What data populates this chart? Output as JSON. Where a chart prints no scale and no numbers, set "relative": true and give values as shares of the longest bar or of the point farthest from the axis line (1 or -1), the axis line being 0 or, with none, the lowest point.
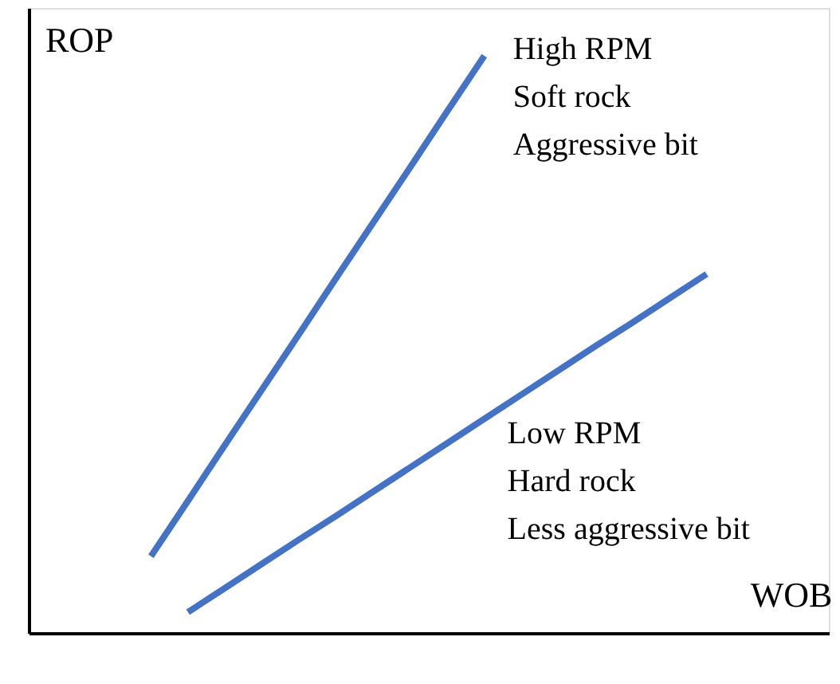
{
  "chart_data": {
    "type": "line",
    "relative": true,
    "xlabel": "WOB",
    "ylabel": "ROP",
    "grid": false,
    "marker": "none",
    "line_style": "solid",
    "categories": [
      null,
      null,
      null,
      null,
      null,
      null,
      null,
      null,
      null,
      null,
      null,
      null,
      null,
      null,
      null,
      null,
      null,
      null,
      null,
      null,
      null,
      null
    ],
    "series": [
      {
        "name": "High RPM\nSoft rock\nAggressive bit",
        "color": "#4472c4",
        "values": [
          null,
          null,
          null,
          0.133,
          0.229,
          0.326,
          0.422,
          0.518,
          0.615,
          0.711,
          0.807,
          0.904,
          1,
          null,
          null,
          null,
          null,
          null,
          null,
          null,
          null,
          null
        ]
      },
      {
        "name": "Low RPM\nHard rock\nLess aggressive bit",
        "color": "#4472c4",
        "values": [
          null,
          null,
          null,
          null,
          0.036,
          0.078,
          0.12,
          0.162,
          0.203,
          0.245,
          0.287,
          0.329,
          0.371,
          0.413,
          0.455,
          0.497,
          0.538,
          0.58,
          0.622,
          null,
          null,
          null
        ]
      }
    ]
  }
}
